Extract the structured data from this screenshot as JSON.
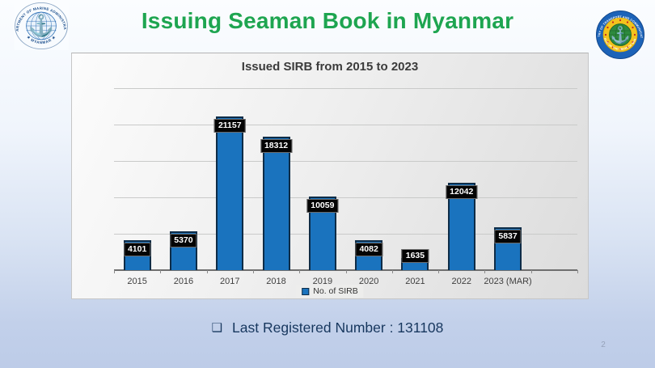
{
  "slide": {
    "title": "Issuing Seaman Book in Myanmar",
    "footnote_bullet": "❑",
    "footnote_text": "Last Registered Number : 131108",
    "page_number": "2"
  },
  "logos": {
    "left": {
      "ring_text_top": "DEPARTMENT OF MARINE ADMINISTRATION",
      "ring_text_bottom": "★ MYANMAR ★",
      "anchor_glyph": "⚓"
    },
    "right": {
      "ring_text_top": "MINISTRY OF TRANSPORT AND COMMUNICATIONS",
      "ring_text_bottom": "REPUBLIC OF THE UNION OF MYANMAR",
      "anchor_glyph": "⚓"
    }
  },
  "chart_data": {
    "type": "bar",
    "title": "Issued SIRB from 2015 to 2023",
    "categories": [
      "2015",
      "2016",
      "2017",
      "2018",
      "2019",
      "2020",
      "2021",
      "2022",
      "2023 (MAR)"
    ],
    "values": [
      4101,
      5370,
      21157,
      18312,
      10059,
      4082,
      1635,
      12042,
      5837
    ],
    "series_name": "No. of SIRB",
    "legend_position": "bottom",
    "ylim": [
      0,
      25000
    ],
    "gridline_step": 5000,
    "grid": true,
    "xlabel": "",
    "ylabel": "",
    "bar_color": "#1a73be",
    "bar_border_color": "#0e2c47",
    "label_bg": "#040404",
    "label_color": "#ffffff"
  }
}
